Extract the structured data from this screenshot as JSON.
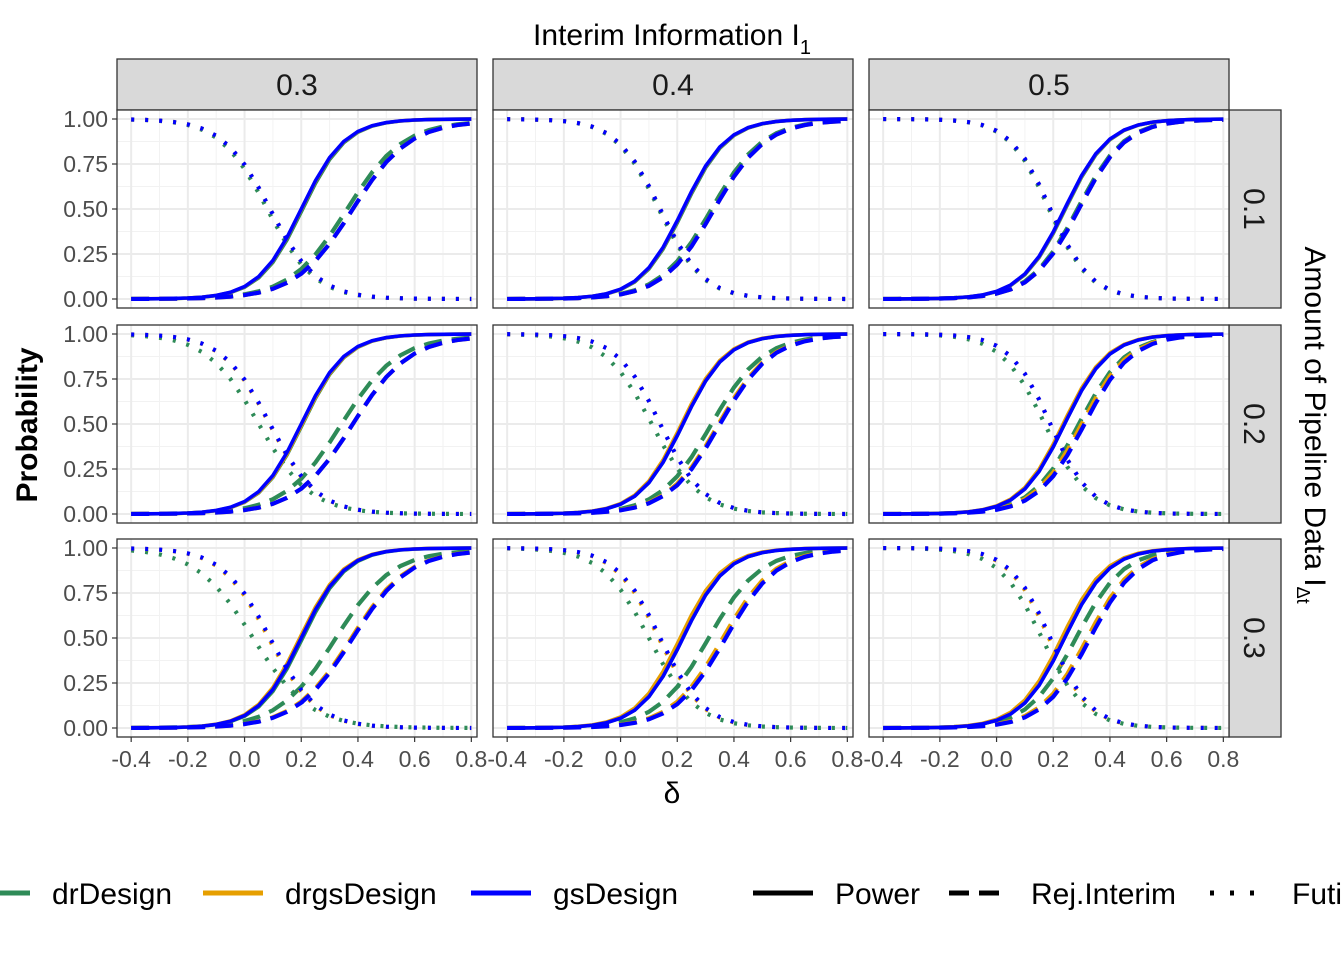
{
  "chart_data": {
    "type": "line",
    "title": "Interim Information I",
    "title_subscript": "1",
    "xlabel": "δ",
    "ylabel": "Probability",
    "right_label": "Amount of Pipeline Data I",
    "right_label_subscript": "Δt",
    "column_facets": [
      "0.3",
      "0.4",
      "0.5"
    ],
    "row_facets": [
      "0.1",
      "0.2",
      "0.3"
    ],
    "x_ticks": [
      "-0.4",
      "-0.2",
      "0.0",
      "0.2",
      "0.4",
      "0.6",
      "0.8"
    ],
    "y_ticks": [
      "0.00",
      "0.25",
      "0.50",
      "0.75",
      "1.00"
    ],
    "xlim": [
      -0.45,
      0.82
    ],
    "ylim": [
      -0.05,
      1.05
    ],
    "grid": true,
    "x": [
      -0.4,
      -0.35,
      -0.3,
      -0.25,
      -0.2,
      -0.15,
      -0.1,
      -0.05,
      0.0,
      0.05,
      0.1,
      0.15,
      0.2,
      0.25,
      0.3,
      0.35,
      0.4,
      0.45,
      0.5,
      0.55,
      0.6,
      0.65,
      0.7,
      0.75,
      0.8
    ],
    "colors": {
      "drDesign": "#2e8b57",
      "drgsDesign": "#e69f00",
      "gsDesign": "#0000ff"
    },
    "legend": {
      "position": "bottom",
      "designs": [
        "drDesign",
        "drgsDesign",
        "gsDesign"
      ],
      "measures": [
        "Power",
        "Rej.Interim",
        "Futility"
      ],
      "linetypes": {
        "Power": "solid",
        "Rej.Interim": "dashed",
        "Futility": "dotted"
      }
    },
    "panels": [
      {
        "col": "0.3",
        "row": "0.1",
        "series": [
          {
            "design": "gsDesign",
            "measure": "Power",
            "midpoint": 0.2,
            "slope": 13
          },
          {
            "design": "gsDesign",
            "measure": "Rej.Interim",
            "midpoint": 0.38,
            "slope": 10,
            "max": 0.99
          },
          {
            "design": "gsDesign",
            "measure": "Futility",
            "midpoint": 0.09,
            "slope": 12
          },
          {
            "design": "drgsDesign",
            "measure": "Power",
            "midpoint": 0.201,
            "slope": 13
          },
          {
            "design": "drgsDesign",
            "measure": "Rej.Interim",
            "midpoint": 0.38,
            "slope": 10,
            "max": 0.99
          },
          {
            "design": "drgsDesign",
            "measure": "Futility",
            "midpoint": 0.09,
            "slope": 12
          },
          {
            "design": "drDesign",
            "measure": "Power",
            "midpoint": 0.205,
            "slope": 13
          },
          {
            "design": "drDesign",
            "measure": "Rej.Interim",
            "midpoint": 0.36,
            "slope": 10,
            "max": 0.99
          },
          {
            "design": "drDesign",
            "measure": "Futility",
            "midpoint": 0.08,
            "slope": 12
          }
        ]
      },
      {
        "col": "0.4",
        "row": "0.1",
        "series": [
          {
            "design": "gsDesign",
            "measure": "Power",
            "midpoint": 0.22,
            "slope": 13
          },
          {
            "design": "gsDesign",
            "measure": "Rej.Interim",
            "midpoint": 0.33,
            "slope": 11,
            "max": 0.995
          },
          {
            "design": "gsDesign",
            "measure": "Futility",
            "midpoint": 0.14,
            "slope": 13
          },
          {
            "design": "drgsDesign",
            "measure": "Power",
            "midpoint": 0.221,
            "slope": 13
          },
          {
            "design": "drgsDesign",
            "measure": "Rej.Interim",
            "midpoint": 0.33,
            "slope": 11,
            "max": 0.995
          },
          {
            "design": "drgsDesign",
            "measure": "Futility",
            "midpoint": 0.14,
            "slope": 13
          },
          {
            "design": "drDesign",
            "measure": "Power",
            "midpoint": 0.224,
            "slope": 13
          },
          {
            "design": "drDesign",
            "measure": "Rej.Interim",
            "midpoint": 0.32,
            "slope": 11,
            "max": 0.995
          },
          {
            "design": "drDesign",
            "measure": "Futility",
            "midpoint": 0.135,
            "slope": 13
          }
        ]
      },
      {
        "col": "0.5",
        "row": "0.1",
        "series": [
          {
            "design": "gsDesign",
            "measure": "Power",
            "midpoint": 0.24,
            "slope": 13
          },
          {
            "design": "gsDesign",
            "measure": "Rej.Interim",
            "midpoint": 0.29,
            "slope": 12,
            "max": 0.998
          },
          {
            "design": "gsDesign",
            "measure": "Futility",
            "midpoint": 0.19,
            "slope": 14
          },
          {
            "design": "drgsDesign",
            "measure": "Power",
            "midpoint": 0.241,
            "slope": 13
          },
          {
            "design": "drgsDesign",
            "measure": "Rej.Interim",
            "midpoint": 0.29,
            "slope": 12,
            "max": 0.998
          },
          {
            "design": "drgsDesign",
            "measure": "Futility",
            "midpoint": 0.19,
            "slope": 14
          },
          {
            "design": "drDesign",
            "measure": "Power",
            "midpoint": 0.243,
            "slope": 13
          },
          {
            "design": "drDesign",
            "measure": "Rej.Interim",
            "midpoint": 0.285,
            "slope": 12,
            "max": 0.998
          },
          {
            "design": "drDesign",
            "measure": "Futility",
            "midpoint": 0.185,
            "slope": 14
          }
        ]
      },
      {
        "col": "0.3",
        "row": "0.2",
        "series": [
          {
            "design": "gsDesign",
            "measure": "Power",
            "midpoint": 0.2,
            "slope": 13
          },
          {
            "design": "gsDesign",
            "measure": "Rej.Interim",
            "midpoint": 0.38,
            "slope": 10,
            "max": 0.99
          },
          {
            "design": "gsDesign",
            "measure": "Futility",
            "midpoint": 0.09,
            "slope": 12
          },
          {
            "design": "drgsDesign",
            "measure": "Power",
            "midpoint": 0.203,
            "slope": 13
          },
          {
            "design": "drgsDesign",
            "measure": "Rej.Interim",
            "midpoint": 0.38,
            "slope": 10,
            "max": 0.99
          },
          {
            "design": "drgsDesign",
            "measure": "Futility",
            "midpoint": 0.088,
            "slope": 12
          },
          {
            "design": "drDesign",
            "measure": "Power",
            "midpoint": 0.205,
            "slope": 13
          },
          {
            "design": "drDesign",
            "measure": "Rej.Interim",
            "midpoint": 0.34,
            "slope": 10,
            "max": 0.99
          },
          {
            "design": "drDesign",
            "measure": "Futility",
            "midpoint": 0.05,
            "slope": 11
          }
        ]
      },
      {
        "col": "0.4",
        "row": "0.2",
        "series": [
          {
            "design": "gsDesign",
            "measure": "Power",
            "midpoint": 0.22,
            "slope": 13
          },
          {
            "design": "gsDesign",
            "measure": "Rej.Interim",
            "midpoint": 0.35,
            "slope": 11,
            "max": 0.995
          },
          {
            "design": "gsDesign",
            "measure": "Futility",
            "midpoint": 0.14,
            "slope": 13
          },
          {
            "design": "drgsDesign",
            "measure": "Power",
            "midpoint": 0.215,
            "slope": 13
          },
          {
            "design": "drgsDesign",
            "measure": "Rej.Interim",
            "midpoint": 0.345,
            "slope": 11,
            "max": 0.995
          },
          {
            "design": "drgsDesign",
            "measure": "Futility",
            "midpoint": 0.14,
            "slope": 13
          },
          {
            "design": "drDesign",
            "measure": "Power",
            "midpoint": 0.22,
            "slope": 13
          },
          {
            "design": "drDesign",
            "measure": "Rej.Interim",
            "midpoint": 0.32,
            "slope": 11,
            "max": 0.995
          },
          {
            "design": "drDesign",
            "measure": "Futility",
            "midpoint": 0.11,
            "slope": 12
          }
        ]
      },
      {
        "col": "0.5",
        "row": "0.2",
        "series": [
          {
            "design": "gsDesign",
            "measure": "Power",
            "midpoint": 0.24,
            "slope": 13
          },
          {
            "design": "gsDesign",
            "measure": "Rej.Interim",
            "midpoint": 0.31,
            "slope": 12,
            "max": 0.998
          },
          {
            "design": "gsDesign",
            "measure": "Futility",
            "midpoint": 0.19,
            "slope": 14
          },
          {
            "design": "drgsDesign",
            "measure": "Power",
            "midpoint": 0.235,
            "slope": 13
          },
          {
            "design": "drgsDesign",
            "measure": "Rej.Interim",
            "midpoint": 0.3,
            "slope": 12,
            "max": 0.998
          },
          {
            "design": "drgsDesign",
            "measure": "Futility",
            "midpoint": 0.19,
            "slope": 14
          },
          {
            "design": "drDesign",
            "measure": "Power",
            "midpoint": 0.24,
            "slope": 13
          },
          {
            "design": "drDesign",
            "measure": "Rej.Interim",
            "midpoint": 0.29,
            "slope": 12,
            "max": 0.998
          },
          {
            "design": "drDesign",
            "measure": "Futility",
            "midpoint": 0.17,
            "slope": 13
          }
        ]
      },
      {
        "col": "0.3",
        "row": "0.3",
        "series": [
          {
            "design": "gsDesign",
            "measure": "Power",
            "midpoint": 0.2,
            "slope": 13
          },
          {
            "design": "gsDesign",
            "measure": "Rej.Interim",
            "midpoint": 0.38,
            "slope": 10,
            "max": 0.99
          },
          {
            "design": "gsDesign",
            "measure": "Futility",
            "midpoint": 0.09,
            "slope": 12
          },
          {
            "design": "drgsDesign",
            "measure": "Power",
            "midpoint": 0.195,
            "slope": 13
          },
          {
            "design": "drgsDesign",
            "measure": "Rej.Interim",
            "midpoint": 0.375,
            "slope": 10,
            "max": 0.99
          },
          {
            "design": "drgsDesign",
            "measure": "Futility",
            "midpoint": 0.085,
            "slope": 12
          },
          {
            "design": "drDesign",
            "measure": "Power",
            "midpoint": 0.205,
            "slope": 13
          },
          {
            "design": "drDesign",
            "measure": "Rej.Interim",
            "midpoint": 0.32,
            "slope": 10,
            "max": 0.99
          },
          {
            "design": "drDesign",
            "measure": "Futility",
            "midpoint": 0.03,
            "slope": 10
          }
        ]
      },
      {
        "col": "0.4",
        "row": "0.3",
        "series": [
          {
            "design": "gsDesign",
            "measure": "Power",
            "midpoint": 0.22,
            "slope": 13
          },
          {
            "design": "gsDesign",
            "measure": "Rej.Interim",
            "midpoint": 0.37,
            "slope": 11,
            "max": 0.995
          },
          {
            "design": "gsDesign",
            "measure": "Futility",
            "midpoint": 0.14,
            "slope": 13
          },
          {
            "design": "drgsDesign",
            "measure": "Power",
            "midpoint": 0.21,
            "slope": 13
          },
          {
            "design": "drgsDesign",
            "measure": "Rej.Interim",
            "midpoint": 0.36,
            "slope": 11,
            "max": 0.995
          },
          {
            "design": "drgsDesign",
            "measure": "Futility",
            "midpoint": 0.135,
            "slope": 13
          },
          {
            "design": "drDesign",
            "measure": "Power",
            "midpoint": 0.22,
            "slope": 13
          },
          {
            "design": "drDesign",
            "measure": "Rej.Interim",
            "midpoint": 0.31,
            "slope": 11,
            "max": 0.995
          },
          {
            "design": "drDesign",
            "measure": "Futility",
            "midpoint": 0.1,
            "slope": 12
          }
        ]
      },
      {
        "col": "0.5",
        "row": "0.3",
        "series": [
          {
            "design": "gsDesign",
            "measure": "Power",
            "midpoint": 0.24,
            "slope": 13
          },
          {
            "design": "gsDesign",
            "measure": "Rej.Interim",
            "midpoint": 0.33,
            "slope": 12,
            "max": 0.998
          },
          {
            "design": "gsDesign",
            "measure": "Futility",
            "midpoint": 0.19,
            "slope": 14
          },
          {
            "design": "drgsDesign",
            "measure": "Power",
            "midpoint": 0.23,
            "slope": 13
          },
          {
            "design": "drgsDesign",
            "measure": "Rej.Interim",
            "midpoint": 0.32,
            "slope": 12,
            "max": 0.998
          },
          {
            "design": "drgsDesign",
            "measure": "Futility",
            "midpoint": 0.185,
            "slope": 14
          },
          {
            "design": "drDesign",
            "measure": "Power",
            "midpoint": 0.24,
            "slope": 13
          },
          {
            "design": "drDesign",
            "measure": "Rej.Interim",
            "midpoint": 0.28,
            "slope": 12,
            "max": 0.998
          },
          {
            "design": "drDesign",
            "measure": "Futility",
            "midpoint": 0.16,
            "slope": 13
          }
        ]
      }
    ]
  }
}
